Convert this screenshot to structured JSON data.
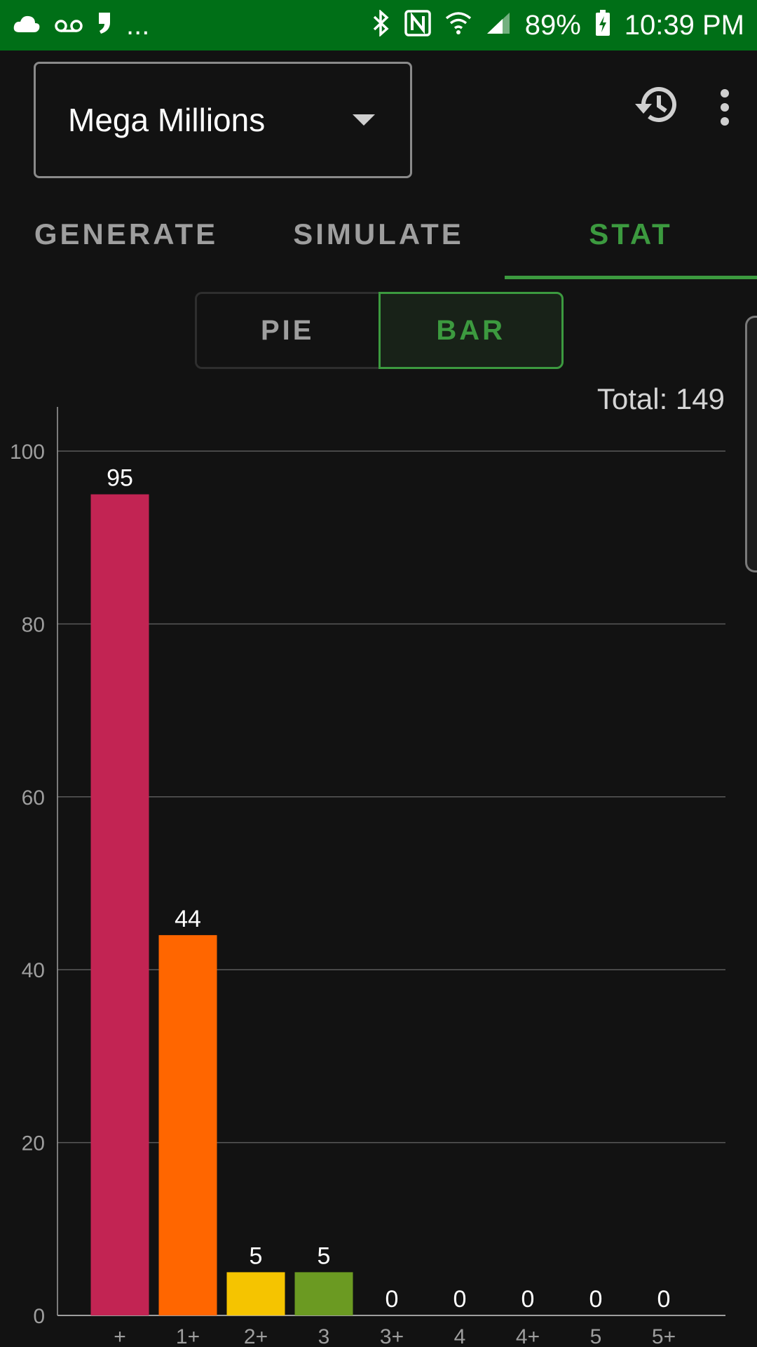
{
  "status_bar": {
    "icons": [
      "cloud-icon",
      "voicemail-icon",
      "quote-icon",
      "more-notifications-icon",
      "bluetooth-icon",
      "nfc-icon",
      "wifi-icon",
      "signal-icon",
      "battery-charging-icon"
    ],
    "overflow": "...",
    "battery": "89%",
    "time": "10:39 PM"
  },
  "header": {
    "game_selector": "Mega Millions"
  },
  "tabs": [
    {
      "label": "GENERATE",
      "active": false
    },
    {
      "label": "SIMULATE",
      "active": false
    },
    {
      "label": "STAT",
      "active": true
    }
  ],
  "view_toggle": {
    "pie": "PIE",
    "bar": "BAR",
    "selected": "BAR"
  },
  "total_label": "Total: 149",
  "colors": {
    "accent": "#3c9a3f",
    "status_bar": "#006f17"
  },
  "chart_data": {
    "type": "bar",
    "categories": [
      "+",
      "1+",
      "2+",
      "3",
      "3+",
      "4",
      "4+",
      "5",
      "5+"
    ],
    "values": [
      95,
      44,
      5,
      5,
      0,
      0,
      0,
      0,
      0
    ],
    "colors": [
      "#c22453",
      "#ff6600",
      "#f5c400",
      "#6b9a22",
      "#888888",
      "#888888",
      "#888888",
      "#888888",
      "#888888"
    ],
    "ylim": [
      0,
      100
    ],
    "yticks": [
      0,
      20,
      40,
      60,
      80,
      100
    ],
    "grid": true,
    "title": "",
    "xlabel": "",
    "ylabel": ""
  }
}
